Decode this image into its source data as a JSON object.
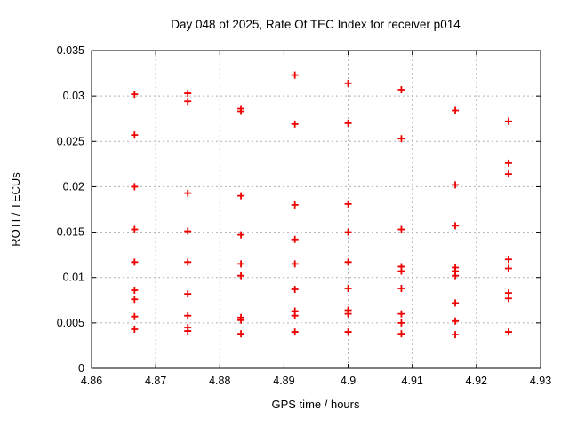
{
  "chart_data": {
    "type": "scatter",
    "title": "Day 048 of 2025, Rate Of TEC Index for receiver p014",
    "xlabel": "GPS time / hours",
    "ylabel": "ROTI / TECUs",
    "xlim": [
      4.86,
      4.93
    ],
    "ylim": [
      0,
      0.035
    ],
    "xticks": [
      4.86,
      4.87,
      4.88,
      4.89,
      4.9,
      4.91,
      4.92,
      4.93
    ],
    "xtick_labels": [
      "4.86",
      "4.87",
      "4.88",
      "4.89",
      "4.9",
      "4.91",
      "4.92",
      "4.93"
    ],
    "yticks": [
      0,
      0.005,
      0.01,
      0.015,
      0.02,
      0.025,
      0.03,
      0.035
    ],
    "ytick_labels": [
      "0",
      "0.005",
      "0.01",
      "0.015",
      "0.02",
      "0.025",
      "0.03",
      "0.035"
    ],
    "grid": true,
    "legend": "none",
    "marker": "plus",
    "colors": {
      "marker": "#ee0000",
      "grid": "#b0b0b0",
      "axis": "#000000"
    },
    "series": [
      {
        "name": "ROTI",
        "points": [
          [
            4.8667,
            0.0302
          ],
          [
            4.8667,
            0.0257
          ],
          [
            4.8667,
            0.02
          ],
          [
            4.8667,
            0.0153
          ],
          [
            4.8667,
            0.0117
          ],
          [
            4.8667,
            0.0086
          ],
          [
            4.8667,
            0.0076
          ],
          [
            4.8667,
            0.0057
          ],
          [
            4.8667,
            0.0043
          ],
          [
            4.875,
            0.0303
          ],
          [
            4.875,
            0.0294
          ],
          [
            4.875,
            0.0193
          ],
          [
            4.875,
            0.0151
          ],
          [
            4.875,
            0.0117
          ],
          [
            4.875,
            0.0082
          ],
          [
            4.875,
            0.0058
          ],
          [
            4.875,
            0.0045
          ],
          [
            4.875,
            0.0041
          ],
          [
            4.8833,
            0.0286
          ],
          [
            4.8833,
            0.0283
          ],
          [
            4.8833,
            0.019
          ],
          [
            4.8833,
            0.0147
          ],
          [
            4.8833,
            0.0115
          ],
          [
            4.8833,
            0.0102
          ],
          [
            4.8833,
            0.0056
          ],
          [
            4.8833,
            0.0053
          ],
          [
            4.8833,
            0.0038
          ],
          [
            4.8917,
            0.0323
          ],
          [
            4.8917,
            0.0269
          ],
          [
            4.8917,
            0.018
          ],
          [
            4.8917,
            0.0142
          ],
          [
            4.8917,
            0.0115
          ],
          [
            4.8917,
            0.0087
          ],
          [
            4.8917,
            0.0063
          ],
          [
            4.8917,
            0.0058
          ],
          [
            4.8917,
            0.004
          ],
          [
            4.9,
            0.0314
          ],
          [
            4.9,
            0.027
          ],
          [
            4.9,
            0.0181
          ],
          [
            4.9,
            0.015
          ],
          [
            4.9,
            0.0117
          ],
          [
            4.9,
            0.0088
          ],
          [
            4.9,
            0.0064
          ],
          [
            4.9,
            0.006
          ],
          [
            4.9,
            0.004
          ],
          [
            4.9083,
            0.0307
          ],
          [
            4.9083,
            0.0253
          ],
          [
            4.9083,
            0.0153
          ],
          [
            4.9083,
            0.0112
          ],
          [
            4.9083,
            0.0107
          ],
          [
            4.9083,
            0.0088
          ],
          [
            4.9083,
            0.006
          ],
          [
            4.9083,
            0.005
          ],
          [
            4.9083,
            0.0038
          ],
          [
            4.9167,
            0.0284
          ],
          [
            4.9167,
            0.0202
          ],
          [
            4.9167,
            0.0157
          ],
          [
            4.9167,
            0.0111
          ],
          [
            4.9167,
            0.0107
          ],
          [
            4.9167,
            0.0102
          ],
          [
            4.9167,
            0.0072
          ],
          [
            4.9167,
            0.0052
          ],
          [
            4.9167,
            0.0037
          ],
          [
            4.925,
            0.0272
          ],
          [
            4.925,
            0.0226
          ],
          [
            4.925,
            0.0214
          ],
          [
            4.925,
            0.012
          ],
          [
            4.925,
            0.011
          ],
          [
            4.925,
            0.0083
          ],
          [
            4.925,
            0.0077
          ],
          [
            4.925,
            0.004
          ]
        ]
      }
    ]
  }
}
